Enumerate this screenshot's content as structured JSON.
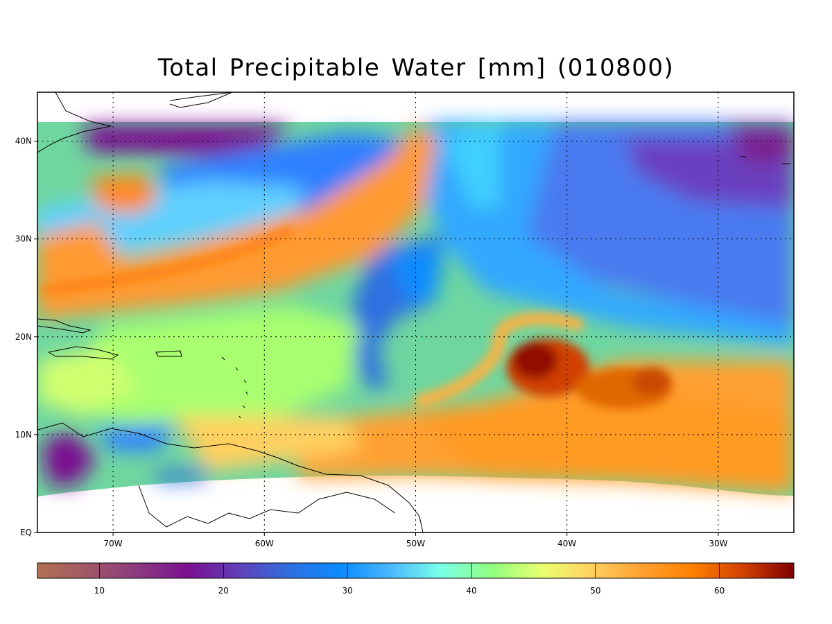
{
  "title": "Total Precipitable Water [mm]  (010800)",
  "map": {
    "lon_range": [
      -75,
      -25
    ],
    "lat_range": [
      0,
      45
    ],
    "data_lat_top": 42,
    "lat_ticks": [
      {
        "value": 40,
        "label": "40N"
      },
      {
        "value": 30,
        "label": "30N"
      },
      {
        "value": 20,
        "label": "20N"
      },
      {
        "value": 10,
        "label": "10N"
      },
      {
        "value": 0,
        "label": "EQ"
      }
    ],
    "lon_ticks": [
      {
        "value": -70,
        "label": "70W"
      },
      {
        "value": -60,
        "label": "60W"
      },
      {
        "value": -50,
        "label": "50W"
      },
      {
        "value": -40,
        "label": "40W"
      },
      {
        "value": -30,
        "label": "30W"
      }
    ],
    "grid": "dotted"
  },
  "colorbar": {
    "range": [
      5,
      66
    ],
    "ticks": [
      10,
      20,
      30,
      40,
      50,
      60
    ],
    "colors": [
      "#b07050",
      "#a05868",
      "#8a3a80",
      "#7a1090",
      "#6040b8",
      "#2f6fe0",
      "#0a8cff",
      "#4ab8ff",
      "#7affe8",
      "#90ff80",
      "#e8ff70",
      "#ffd060",
      "#ffa030",
      "#ff8000",
      "#d04000",
      "#800000"
    ]
  }
}
